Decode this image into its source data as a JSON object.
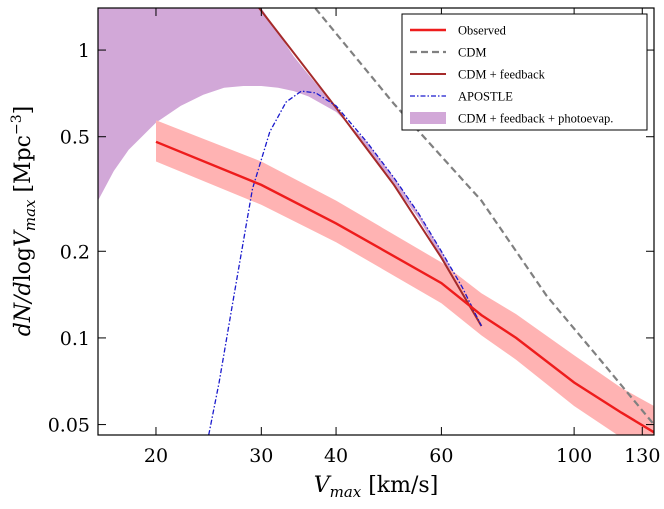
{
  "chart_data": {
    "type": "line",
    "title": "",
    "xlabel": "V_max [km/s]",
    "ylabel": "dN/dlogV_max [Mpc^-3]",
    "x_scale": "log",
    "y_scale": "log",
    "xlim": [
      16,
      136
    ],
    "ylim": [
      0.046,
      1.4
    ],
    "x_ticks": [
      20,
      30,
      40,
      60,
      100,
      130
    ],
    "y_ticks": [
      0.05,
      0.1,
      0.2,
      0.5,
      1
    ],
    "grid": false,
    "legend_position": "top-right",
    "colors": {
      "observed": "#ee1c1c",
      "observed_band": "#ffb3b3",
      "cdm": "#808080",
      "cdm_feedback": "#a52a2a",
      "apostle": "#1a1acd",
      "photoevap_band": "#d2a8d8",
      "photoevap_edge": "#b57cbf"
    },
    "series": [
      {
        "name": "Observed",
        "style": "solid",
        "x": [
          20,
          30,
          40,
          60,
          70,
          80,
          100,
          120,
          136
        ],
        "y": [
          0.48,
          0.34,
          0.25,
          0.155,
          0.12,
          0.1,
          0.07,
          0.055,
          0.047
        ],
        "band_low": [
          0.41,
          0.29,
          0.215,
          0.132,
          0.102,
          0.084,
          0.058,
          0.045,
          0.038
        ],
        "band_high": [
          0.57,
          0.41,
          0.3,
          0.183,
          0.143,
          0.121,
          0.087,
          0.067,
          0.058
        ]
      },
      {
        "name": "CDM",
        "style": "dashed",
        "x": [
          35,
          50,
          70,
          90,
          110,
          136
        ],
        "y": [
          1.6,
          0.65,
          0.3,
          0.14,
          0.085,
          0.05
        ]
      },
      {
        "name": "CDM + feedback",
        "style": "solid",
        "x": [
          29,
          40,
          50,
          60,
          70
        ],
        "y": [
          1.5,
          0.63,
          0.34,
          0.19,
          0.11
        ]
      },
      {
        "name": "APOSTLE",
        "style": "dashdot",
        "x": [
          24.5,
          25.5,
          27,
          29,
          31,
          33,
          35,
          37,
          40,
          45,
          50,
          55,
          60,
          65,
          70
        ],
        "y": [
          0.046,
          0.07,
          0.14,
          0.33,
          0.52,
          0.66,
          0.72,
          0.71,
          0.64,
          0.48,
          0.36,
          0.27,
          0.2,
          0.15,
          0.11
        ]
      },
      {
        "name": "CDM + feedback + photoevap.",
        "style": "band",
        "x": [
          16,
          17,
          18,
          20,
          22,
          24,
          26,
          28,
          30,
          32,
          34,
          36,
          40,
          45,
          50,
          55,
          60,
          65,
          70
        ],
        "y_low": [
          0.3,
          0.38,
          0.45,
          0.56,
          0.64,
          0.7,
          0.74,
          0.75,
          0.75,
          0.74,
          0.72,
          0.69,
          0.61,
          0.48,
          0.36,
          0.27,
          0.2,
          0.15,
          0.11
        ],
        "y_high": [
          1.4,
          1.4,
          1.4,
          1.4,
          1.4,
          1.4,
          1.4,
          1.4,
          1.4,
          1.15,
          0.95,
          0.82,
          0.63,
          0.45,
          0.34,
          0.26,
          0.19,
          0.145,
          0.11
        ]
      }
    ],
    "legend": [
      "Observed",
      "CDM",
      "CDM + feedback",
      "APOSTLE",
      "CDM + feedback + photoevap."
    ]
  }
}
